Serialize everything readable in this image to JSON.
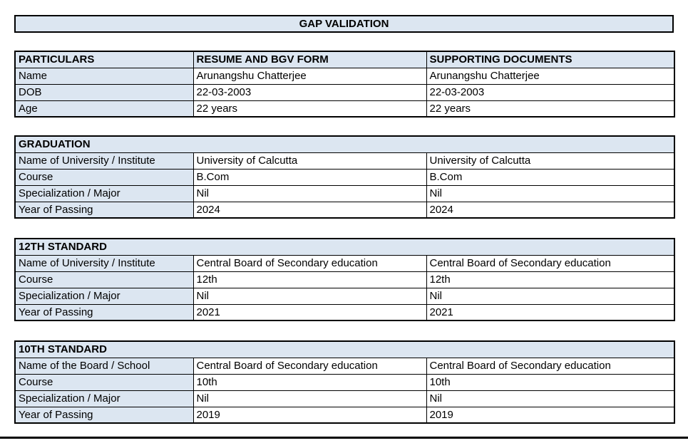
{
  "title": "GAP VALIDATION",
  "colors": {
    "header_fill": "#dce6f1",
    "border": "#000000",
    "text": "#000000",
    "background": "#ffffff"
  },
  "particulars": {
    "headers": [
      "PARTICULARS",
      "RESUME AND BGV FORM",
      "SUPPORTING DOCUMENTS"
    ],
    "rows": [
      {
        "label": "Name",
        "resume": "Arunangshu Chatterjee",
        "supporting": "Arunangshu Chatterjee"
      },
      {
        "label": "DOB",
        "resume": "22-03-2003",
        "supporting": "22-03-2003"
      },
      {
        "label": "Age",
        "resume": "22 years",
        "supporting": "22 years"
      }
    ]
  },
  "sections": [
    {
      "heading": "GRADUATION",
      "rows": [
        {
          "label": "Name of University / Institute",
          "resume": "University of Calcutta",
          "supporting": "University of Calcutta"
        },
        {
          "label": "Course",
          "resume": "B.Com",
          "supporting": "B.Com"
        },
        {
          "label": "Specialization / Major",
          "resume": "Nil",
          "supporting": "Nil"
        },
        {
          "label": "Year of Passing",
          "resume": "2024",
          "supporting": "2024"
        }
      ]
    },
    {
      "heading": "12TH STANDARD",
      "rows": [
        {
          "label": "Name of University / Institute",
          "resume": "Central Board of Secondary education",
          "supporting": "Central Board of Secondary education"
        },
        {
          "label": "Course",
          "resume": "12th",
          "supporting": "12th"
        },
        {
          "label": "Specialization / Major",
          "resume": "Nil",
          "supporting": "Nil"
        },
        {
          "label": "Year of Passing",
          "resume": "2021",
          "supporting": "2021"
        }
      ]
    },
    {
      "heading": "10TH STANDARD",
      "rows": [
        {
          "label": "Name of the Board / School",
          "resume": "Central Board of Secondary education",
          "supporting": "Central Board of Secondary education"
        },
        {
          "label": "Course",
          "resume": "10th",
          "supporting": "10th"
        },
        {
          "label": "Specialization / Major",
          "resume": "Nil",
          "supporting": "Nil"
        },
        {
          "label": "Year of Passing",
          "resume": "2019",
          "supporting": "2019"
        }
      ]
    }
  ]
}
